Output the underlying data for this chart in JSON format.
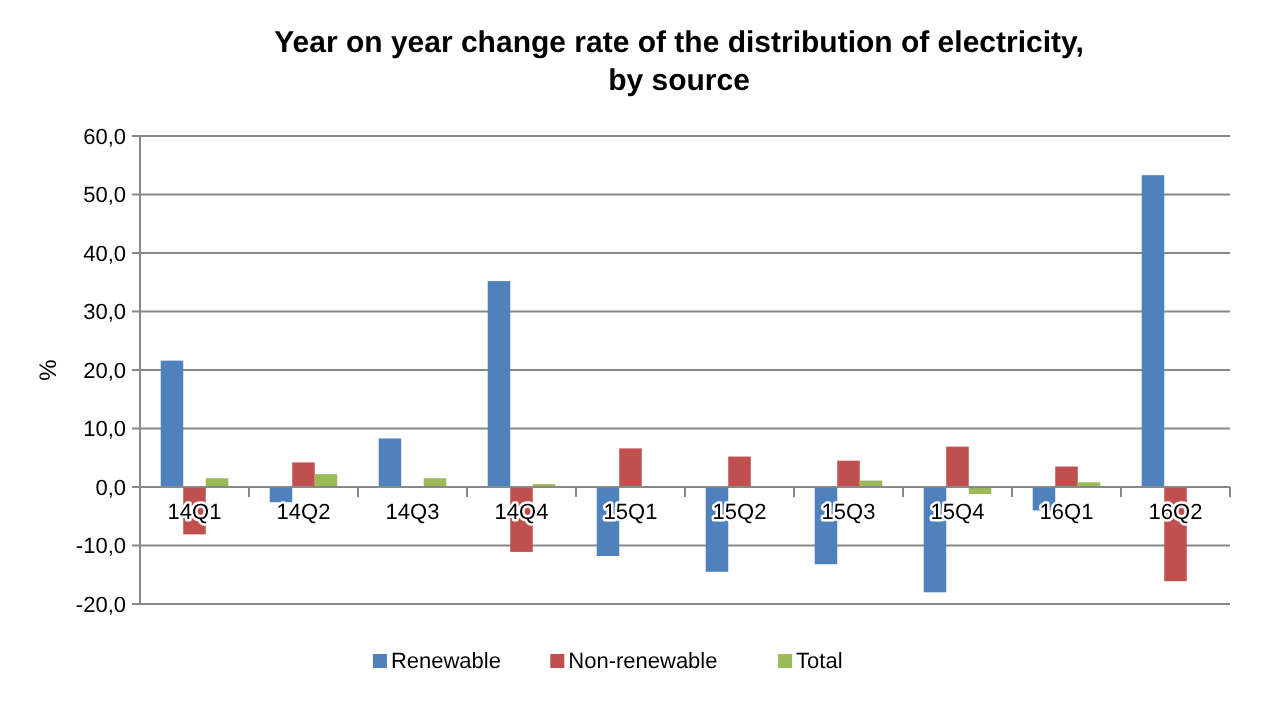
{
  "chart_data": {
    "type": "bar",
    "title": "Year on year change rate of the distribution of electricity, by source",
    "ylabel": "%",
    "categories": [
      "14Q1",
      "14Q2",
      "14Q3",
      "14Q4",
      "15Q1",
      "15Q2",
      "15Q3",
      "15Q4",
      "16Q1",
      "16Q2"
    ],
    "series": [
      {
        "name": "Renewable",
        "color": "#4f81bd",
        "values": [
          21.6,
          -2.6,
          8.3,
          35.2,
          -11.8,
          -14.5,
          -13.2,
          -18.0,
          -4.0,
          53.3
        ]
      },
      {
        "name": "Non-renewable",
        "color": "#c0504d",
        "values": [
          -8.1,
          4.2,
          null,
          -11.1,
          6.6,
          5.2,
          4.5,
          6.9,
          3.5,
          -16.1
        ]
      },
      {
        "name": "Total",
        "color": "#9bbb59",
        "values": [
          1.5,
          2.2,
          1.5,
          0.5,
          null,
          null,
          1.1,
          -1.2,
          0.8,
          null
        ]
      }
    ],
    "ylim": [
      -20,
      60
    ],
    "yticks": [
      {
        "value": -20,
        "label": "-20,0"
      },
      {
        "value": -10,
        "label": "-10,0"
      },
      {
        "value": 0,
        "label": "0,0"
      },
      {
        "value": 10,
        "label": "10,0"
      },
      {
        "value": 20,
        "label": "20,0"
      },
      {
        "value": 30,
        "label": "30,0"
      },
      {
        "value": 40,
        "label": "40,0"
      },
      {
        "value": 50,
        "label": "50,0"
      },
      {
        "value": 60,
        "label": "60,0"
      }
    ],
    "grid": "y",
    "legend": "bottom"
  }
}
